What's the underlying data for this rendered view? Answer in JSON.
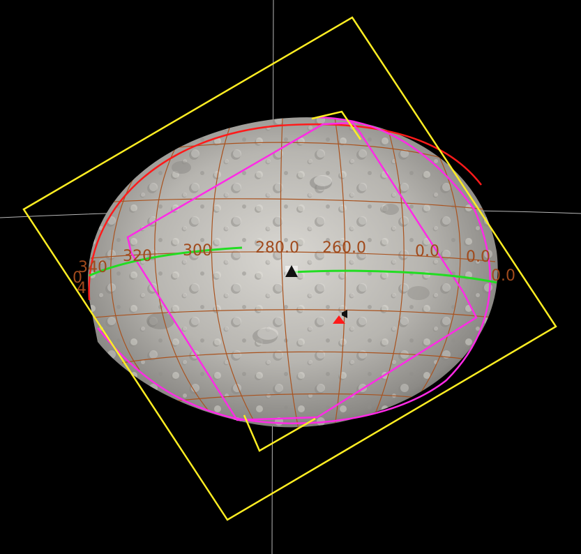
{
  "colors": {
    "background": "#000000",
    "axis_lines": "#b8b8b8",
    "lat_lon_grid": "#a9521e",
    "grid_labels": "#a04a1c",
    "equator_track": "#22dd22",
    "limb_outline": "#ff1a1a",
    "footprint_magenta": "#ff2ae6",
    "footprint_yellow": "#ffee22",
    "sub_point_marker": "#111111",
    "target_marker": "#ff1a1a"
  },
  "grid_labels": {
    "lon_340": "340",
    "lon_320": "320",
    "lon_300": "300",
    "lon_280": "280.0",
    "lon_260": "260.0",
    "lon_0_a": "0.0",
    "lon_0_b": "0.0",
    "lon_0_c": "0.0",
    "lat_left": "0",
    "lat_left_b": "4"
  },
  "markers": {
    "sub_point_icon": "triangle-black",
    "target_icon": "triangle-red",
    "target_flag_icon": "flag"
  }
}
